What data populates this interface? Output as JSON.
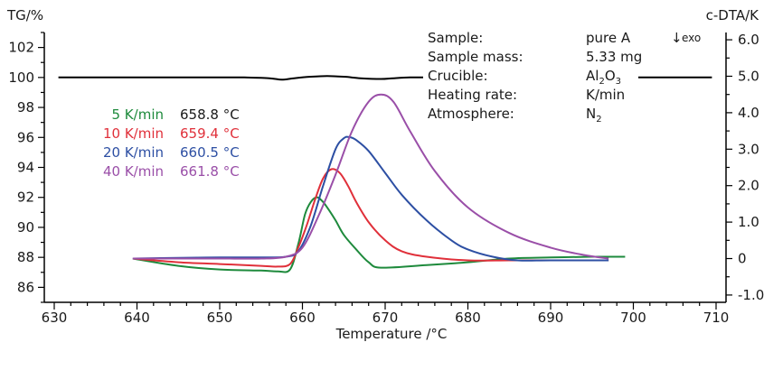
{
  "chart_data": {
    "type": "line",
    "xlabel": "Temperature /°C",
    "ylabel_left": "TG/%",
    "ylabel_right": "c-DTA/K",
    "xlim": [
      630,
      710
    ],
    "x_ticks": [
      "630",
      "640",
      "650",
      "660",
      "670",
      "680",
      "690",
      "700",
      "710"
    ],
    "ylim_left": [
      85,
      103
    ],
    "y_ticks_left": [
      "86",
      "88",
      "90",
      "92",
      "94",
      "96",
      "98",
      "100",
      "102"
    ],
    "ylim_right": [
      -1.2,
      6.2
    ],
    "y_ticks_right": [
      "-1.0",
      "0",
      "1.0",
      "2.0",
      "3.0",
      "4.0",
      "5.0",
      "6.0"
    ],
    "exo_label": "exo",
    "exo_arrow": "↓",
    "tg": {
      "axis": "left",
      "color": "#000000",
      "x": [
        630.5,
        640,
        645,
        650,
        653,
        656,
        657.5,
        659,
        661,
        663,
        665,
        667,
        669.5,
        671,
        673,
        675
      ],
      "y": [
        100.0,
        100.0,
        100.0,
        100.0,
        100.0,
        99.95,
        99.85,
        99.95,
        100.05,
        100.1,
        100.05,
        99.95,
        99.9,
        99.95,
        100.0,
        100.0
      ],
      "x_right": [
        687,
        692,
        697,
        700,
        705,
        709.5
      ],
      "y_right": [
        100.0,
        100.0,
        100.0,
        100.0,
        100.0,
        100.0
      ]
    },
    "info": {
      "labels": [
        "Sample:",
        "Sample mass:",
        "Crucible:",
        "Heating rate:",
        "Atmosphere:"
      ],
      "sample": "pure A",
      "mass": "5.33 mg",
      "crucible_main": "Al",
      "crucible_sub1": "2",
      "crucible_mid": "O",
      "crucible_sub2": "3",
      "heating_rate": "K/min",
      "atm_main": "N",
      "atm_sub": "2"
    },
    "series": [
      {
        "rate": "5 K/min",
        "peak": "658.8 °C",
        "color": "#1e8a3c",
        "x": [
          639.5,
          645,
          650,
          655,
          657,
          658.5,
          659.5,
          660.3,
          661,
          661.7,
          662.3,
          663,
          664,
          665,
          666.5,
          668,
          669.5,
          675,
          680,
          685,
          690,
          695,
          699
        ],
        "y": [
          0.0,
          -0.2,
          -0.3,
          -0.33,
          -0.35,
          -0.3,
          0.4,
          1.2,
          1.55,
          1.68,
          1.6,
          1.4,
          1.05,
          0.65,
          0.25,
          -0.1,
          -0.25,
          -0.18,
          -0.1,
          0.0,
          0.03,
          0.05,
          0.05
        ]
      },
      {
        "rate": "10 K/min",
        "peak": "659.4 °C",
        "color": "#e0303a",
        "x": [
          639.5,
          645,
          650,
          655,
          657,
          658.5,
          659.5,
          660.5,
          661.5,
          662.5,
          663.5,
          664.5,
          665.5,
          666.5,
          668,
          670,
          672,
          675,
          680,
          685,
          690,
          697
        ],
        "y": [
          0.0,
          -0.1,
          -0.15,
          -0.2,
          -0.22,
          -0.15,
          0.3,
          0.9,
          1.6,
          2.2,
          2.45,
          2.35,
          2.0,
          1.55,
          1.0,
          0.5,
          0.2,
          0.05,
          -0.05,
          -0.05,
          -0.05,
          -0.05
        ]
      },
      {
        "rate": "20 K/min",
        "peak": "660.5 °C",
        "color": "#2d4fa3",
        "x": [
          639.5,
          645,
          650,
          655,
          658,
          659.5,
          661,
          662.5,
          664,
          665,
          665.7,
          666.5,
          668,
          670,
          672,
          675,
          678,
          680,
          683,
          686,
          690,
          697
        ],
        "y": [
          0.0,
          0.02,
          0.03,
          0.03,
          0.05,
          0.2,
          0.9,
          2.0,
          3.0,
          3.3,
          3.33,
          3.25,
          2.95,
          2.35,
          1.75,
          1.05,
          0.5,
          0.25,
          0.05,
          -0.05,
          -0.05,
          -0.05
        ]
      },
      {
        "rate": "40 K/min",
        "peak": "661.8 °C",
        "color": "#9a4fa8",
        "x": [
          639.5,
          645,
          650,
          655,
          658,
          660,
          662,
          664,
          666,
          668,
          669.5,
          671,
          673,
          676,
          680,
          685,
          690,
          694,
          697
        ],
        "y": [
          0.0,
          0.0,
          0.0,
          0.0,
          0.05,
          0.3,
          1.2,
          2.3,
          3.5,
          4.3,
          4.5,
          4.3,
          3.5,
          2.4,
          1.4,
          0.7,
          0.3,
          0.1,
          0.0
        ]
      }
    ]
  }
}
